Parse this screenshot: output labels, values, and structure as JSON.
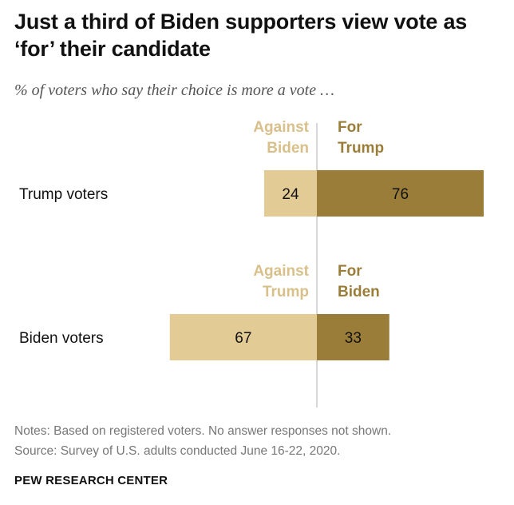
{
  "header": {
    "title": "Just a third of Biden supporters view vote as ‘for’ their candidate",
    "subtitle": "% of voters who say their choice is more a vote …"
  },
  "footer": {
    "notes": "Notes: Based on registered voters. No answer responses not shown.",
    "source": "Source: Survey of U.S. adults conducted June 16-22, 2020.",
    "organization": "PEW RESEARCH CENTER"
  },
  "colors": {
    "against": "#e3cb96",
    "for": "#9a7d38",
    "against_label": "#d9c08a",
    "for_label": "#9a7d38",
    "axis": "#cccccc"
  },
  "chart_data": {
    "type": "bar",
    "orientation": "horizontal-diverging",
    "xlim": [
      0,
      100
    ],
    "grid": false,
    "groups": [
      {
        "category": "Trump voters",
        "against_label": [
          "Against",
          "Biden"
        ],
        "for_label": [
          "For",
          "Trump"
        ],
        "against_value": 24,
        "for_value": 76
      },
      {
        "category": "Biden voters",
        "against_label": [
          "Against",
          "Trump"
        ],
        "for_label": [
          "For",
          "Biden"
        ],
        "against_value": 67,
        "for_value": 33
      }
    ]
  }
}
